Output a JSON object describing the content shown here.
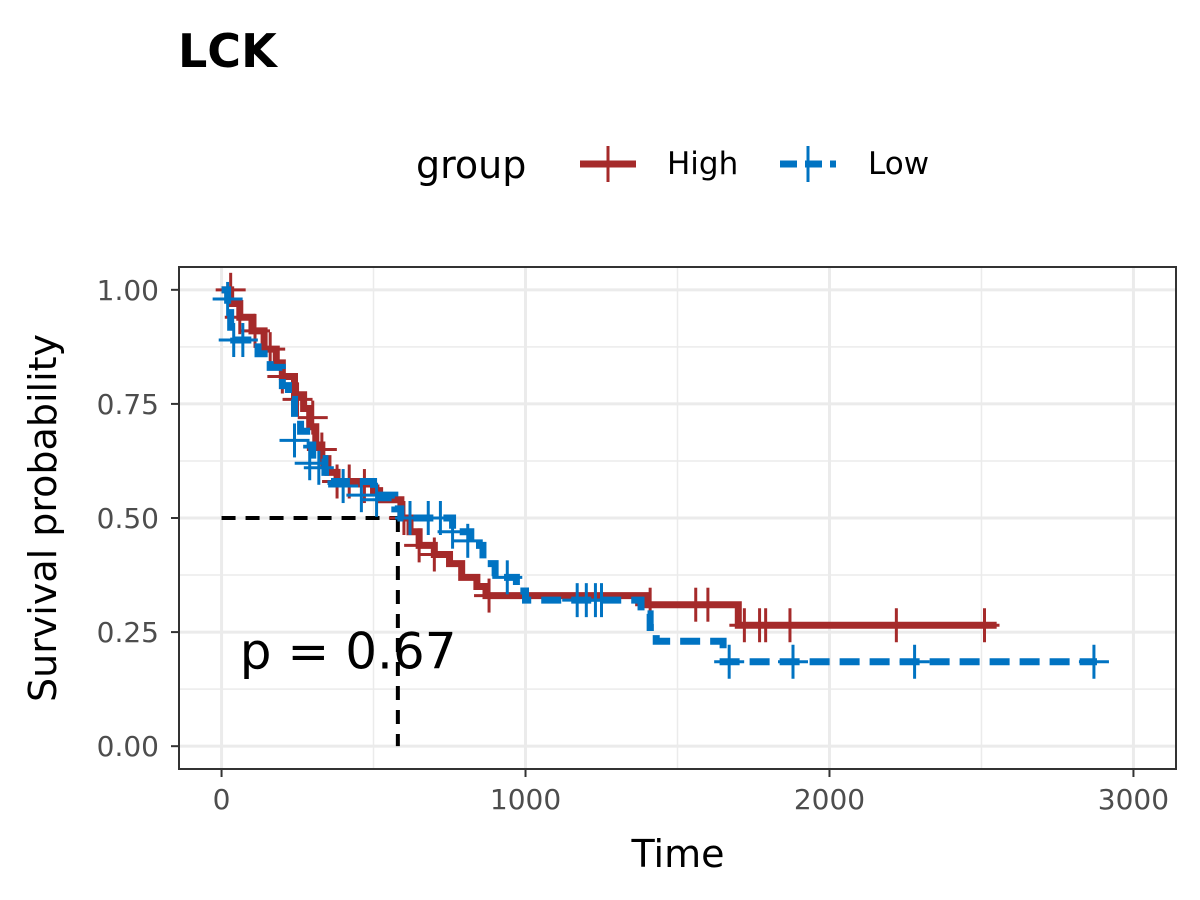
{
  "chart_data": {
    "type": "line",
    "title": "LCK",
    "xlabel": "Time",
    "ylabel": "Survival probability",
    "xlim": [
      -140,
      3140
    ],
    "ylim": [
      -0.05,
      1.05
    ],
    "x_ticks": [
      0,
      1000,
      2000,
      3000
    ],
    "x_tick_labels": [
      "0",
      "1000",
      "2000",
      "3000"
    ],
    "y_ticks": [
      0,
      0.25,
      0.5,
      0.75,
      1.0
    ],
    "y_tick_labels": [
      "0.00",
      "0.25",
      "0.50",
      "0.75",
      "1.00"
    ],
    "grid": true,
    "legend": {
      "title": "group",
      "position": "top"
    },
    "annotation": {
      "text": "p = 0.67",
      "x": 60,
      "y": 0.17
    },
    "median_line": {
      "x": 580,
      "y": 0.5,
      "color": "#000000"
    },
    "series": [
      {
        "name": "High",
        "color": "#A52A2A",
        "dash": "solid",
        "steps": [
          [
            0,
            1.0
          ],
          [
            30,
            0.97
          ],
          [
            60,
            0.94
          ],
          [
            100,
            0.91
          ],
          [
            140,
            0.87
          ],
          [
            180,
            0.84
          ],
          [
            200,
            0.81
          ],
          [
            240,
            0.77
          ],
          [
            270,
            0.74
          ],
          [
            290,
            0.7
          ],
          [
            310,
            0.66
          ],
          [
            330,
            0.63
          ],
          [
            350,
            0.6
          ],
          [
            380,
            0.58
          ],
          [
            500,
            0.56
          ],
          [
            520,
            0.54
          ],
          [
            590,
            0.5
          ],
          [
            620,
            0.47
          ],
          [
            650,
            0.44
          ],
          [
            700,
            0.42
          ],
          [
            750,
            0.4
          ],
          [
            790,
            0.37
          ],
          [
            840,
            0.35
          ],
          [
            870,
            0.33
          ],
          [
            1400,
            0.31
          ],
          [
            1700,
            0.265
          ],
          [
            2550,
            0.265
          ]
        ],
        "censor": [
          [
            30,
            1.0
          ],
          [
            60,
            0.94
          ],
          [
            110,
            0.91
          ],
          [
            160,
            0.87
          ],
          [
            200,
            0.81
          ],
          [
            250,
            0.76
          ],
          [
            300,
            0.72
          ],
          [
            330,
            0.65
          ],
          [
            380,
            0.58
          ],
          [
            420,
            0.58
          ],
          [
            470,
            0.57
          ],
          [
            600,
            0.5
          ],
          [
            650,
            0.44
          ],
          [
            700,
            0.42
          ],
          [
            880,
            0.33
          ],
          [
            1410,
            0.31
          ],
          [
            1560,
            0.31
          ],
          [
            1600,
            0.31
          ],
          [
            1720,
            0.265
          ],
          [
            1770,
            0.265
          ],
          [
            1790,
            0.265
          ],
          [
            1870,
            0.265
          ],
          [
            2220,
            0.265
          ],
          [
            2510,
            0.265
          ]
        ]
      },
      {
        "name": "Low",
        "color": "#0073C2",
        "dash": "dashed",
        "steps": [
          [
            0,
            1.0
          ],
          [
            20,
            0.95
          ],
          [
            30,
            0.91
          ],
          [
            40,
            0.89
          ],
          [
            120,
            0.86
          ],
          [
            160,
            0.83
          ],
          [
            200,
            0.79
          ],
          [
            220,
            0.76
          ],
          [
            240,
            0.72
          ],
          [
            260,
            0.69
          ],
          [
            280,
            0.66
          ],
          [
            300,
            0.63
          ],
          [
            340,
            0.6
          ],
          [
            360,
            0.58
          ],
          [
            500,
            0.55
          ],
          [
            570,
            0.52
          ],
          [
            590,
            0.5
          ],
          [
            760,
            0.47
          ],
          [
            820,
            0.44
          ],
          [
            860,
            0.4
          ],
          [
            900,
            0.37
          ],
          [
            970,
            0.34
          ],
          [
            1000,
            0.32
          ],
          [
            1380,
            0.29
          ],
          [
            1410,
            0.26
          ],
          [
            1430,
            0.23
          ],
          [
            1650,
            0.185
          ],
          [
            2880,
            0.185
          ]
        ],
        "censor": [
          [
            20,
            0.98
          ],
          [
            40,
            0.89
          ],
          [
            70,
            0.89
          ],
          [
            240,
            0.67
          ],
          [
            290,
            0.62
          ],
          [
            320,
            0.61
          ],
          [
            400,
            0.57
          ],
          [
            460,
            0.55
          ],
          [
            510,
            0.54
          ],
          [
            620,
            0.5
          ],
          [
            680,
            0.5
          ],
          [
            720,
            0.5
          ],
          [
            760,
            0.47
          ],
          [
            810,
            0.45
          ],
          [
            940,
            0.37
          ],
          [
            1170,
            0.32
          ],
          [
            1200,
            0.32
          ],
          [
            1230,
            0.32
          ],
          [
            1250,
            0.32
          ],
          [
            1670,
            0.185
          ],
          [
            1880,
            0.185
          ],
          [
            2280,
            0.185
          ],
          [
            2870,
            0.185
          ]
        ]
      }
    ]
  }
}
